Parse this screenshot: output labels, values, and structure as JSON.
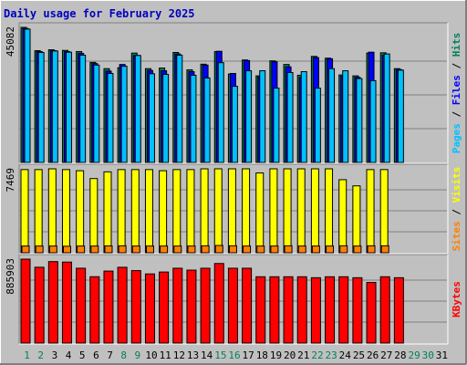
{
  "title": "Daily usage for February 2025",
  "colors": {
    "background": "#c0c0c0",
    "hits": "#00805c",
    "files": "#0000ff",
    "pages": "#00c0ff",
    "visits": "#ffff00",
    "sites": "#ff8000",
    "kbytes": "#ff0000",
    "weekday_label": "#000000",
    "weekend_label": "#00805c",
    "title": "#0000c0"
  },
  "chart_data": {
    "type": "bar",
    "title": "Daily usage for February 2025",
    "categories": [
      "1",
      "2",
      "3",
      "4",
      "5",
      "6",
      "7",
      "8",
      "9",
      "10",
      "11",
      "12",
      "13",
      "14",
      "15",
      "16",
      "17",
      "18",
      "19",
      "20",
      "21",
      "22",
      "23",
      "24",
      "25",
      "26",
      "27",
      "28",
      "29",
      "30",
      "31"
    ],
    "weekend_days": [
      "1",
      "2",
      "8",
      "9",
      "15",
      "16",
      "22",
      "23",
      "29",
      "30"
    ],
    "panels": [
      {
        "name": "hits-files-pages",
        "max_label": "45082",
        "ylim": [
          0,
          45082
        ],
        "axis_label_parts": [
          {
            "text": "Pages",
            "color": "#00c0ff"
          },
          {
            "text": " / ",
            "color": "#000000"
          },
          {
            "text": "Files",
            "color": "#0000ff"
          },
          {
            "text": " / ",
            "color": "#000000"
          },
          {
            "text": "Hits",
            "color": "#00805c"
          }
        ],
        "series": [
          {
            "name": "Hits",
            "color": "#00805c",
            "values": [
              45082,
              37300,
              37600,
              37400,
              37000,
              33400,
              31300,
              31600,
              36500,
              31300,
              31500,
              36700,
              30900,
              32800,
              37000,
              29500,
              34200,
              28900,
              33900,
              32700,
              29100,
              35400,
              34800,
              29200,
              28900,
              36500,
              36600,
              31300,
              0,
              0,
              0
            ]
          },
          {
            "name": "Files",
            "color": "#0000ff",
            "values": [
              44700,
              37000,
              37300,
              37000,
              36400,
              33000,
              30500,
              32700,
              35700,
              30700,
              30600,
              36200,
              30300,
              32500,
              37100,
              29700,
              34000,
              28500,
              33600,
              31900,
              28400,
              35000,
              34600,
              28800,
              28400,
              36800,
              35800,
              31000,
              0,
              0,
              0
            ]
          },
          {
            "name": "Pages",
            "color": "#00c0ff",
            "values": [
              44500,
              36700,
              37200,
              36800,
              35800,
              32500,
              29700,
              32100,
              35700,
              29600,
              29400,
              35800,
              29100,
              28200,
              33300,
              25400,
              30600,
              30600,
              24800,
              30000,
              30300,
              24800,
              31300,
              30600,
              28000,
              27300,
              36200,
              30800,
              0,
              0,
              0
            ]
          }
        ]
      },
      {
        "name": "visits-sites",
        "max_label": "7469",
        "ylim": [
          0,
          7469
        ],
        "axis_label_parts": [
          {
            "text": "Sites",
            "color": "#ff8000"
          },
          {
            "text": " / ",
            "color": "#000000"
          },
          {
            "text": "Visits",
            "color": "#ffff00"
          }
        ],
        "series": [
          {
            "name": "Visits",
            "color": "#ffff00",
            "values": [
              7400,
              7400,
              7469,
              7400,
              7300,
              6600,
              7200,
              7400,
              7400,
              7400,
              7300,
              7400,
              7400,
              7469,
              7469,
              7469,
              7469,
              7100,
              7469,
              7469,
              7469,
              7469,
              7469,
              6500,
              5950,
              7400,
              7400,
              0,
              0,
              0,
              0
            ]
          },
          {
            "name": "Sites",
            "color": "#ff8000",
            "values": [
              600,
              600,
              600,
              580,
              600,
              600,
              610,
              620,
              600,
              600,
              600,
              600,
              600,
              620,
              650,
              620,
              600,
              600,
              600,
              620,
              600,
              600,
              600,
              620,
              600,
              620,
              620,
              0,
              0,
              0,
              0
            ]
          }
        ]
      },
      {
        "name": "kbytes",
        "max_label": "885903",
        "ylim": [
          0,
          885903
        ],
        "axis_label_parts": [
          {
            "text": "KBytes",
            "color": "#ff0000"
          }
        ],
        "series": [
          {
            "name": "KBytes",
            "color": "#ff0000",
            "values": [
              885903,
              800500,
              860000,
              855000,
              790000,
              700500,
              760000,
              800000,
              765000,
              730000,
              750000,
              790000,
              770000,
              790000,
              840000,
              790000,
              790000,
              700000,
              700000,
              700000,
              700000,
              690000,
              700000,
              700000,
              690000,
              640000,
              700000,
              690000,
              0,
              0,
              0
            ]
          }
        ]
      }
    ]
  }
}
